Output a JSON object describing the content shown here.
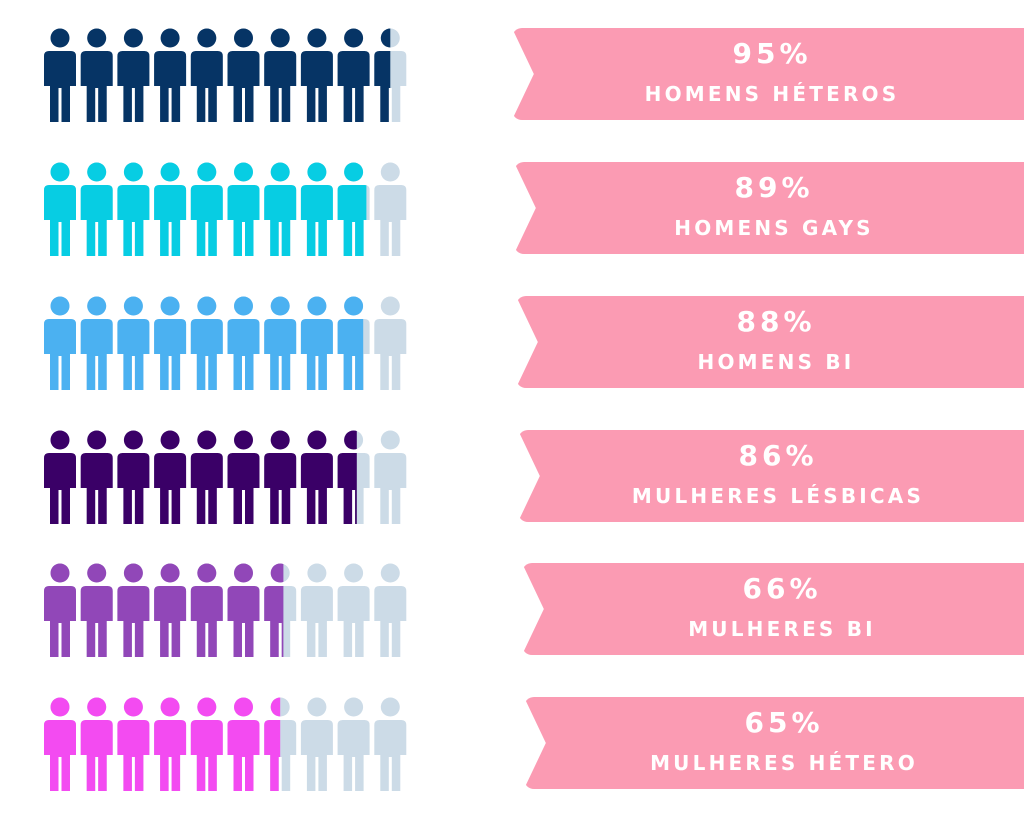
{
  "chart_data": {
    "type": "pictogram",
    "icons_per_row": 10,
    "empty_icon_color": "#ccdbe7",
    "ribbon_color": "#fb9bb3",
    "categories": [
      "HOMENS HÉTEROS",
      "HOMENS GAYS",
      "HOMENS BI",
      "MULHERES LÉSBICAS",
      "MULHERES BI",
      "MULHERES HÉTERO"
    ],
    "values": [
      95,
      89,
      88,
      86,
      66,
      65
    ],
    "value_labels": [
      "95%",
      "89%",
      "88%",
      "86%",
      "66%",
      "65%"
    ],
    "series": [
      {
        "label": "HOMENS HÉTEROS",
        "value": 95,
        "value_label": "95%",
        "color": "#063465"
      },
      {
        "label": "HOMENS GAYS",
        "value": 89,
        "value_label": "89%",
        "color": "#07cde3"
      },
      {
        "label": "HOMENS BI",
        "value": 88,
        "value_label": "88%",
        "color": "#4bb1f1"
      },
      {
        "label": "MULHERES LÉSBICAS",
        "value": 86,
        "value_label": "86%",
        "color": "#3a0067"
      },
      {
        "label": "MULHERES BI",
        "value": 66,
        "value_label": "66%",
        "color": "#9147b8"
      },
      {
        "label": "MULHERES HÉTERO",
        "value": 65,
        "value_label": "65%",
        "color": "#f34bf1"
      }
    ]
  }
}
